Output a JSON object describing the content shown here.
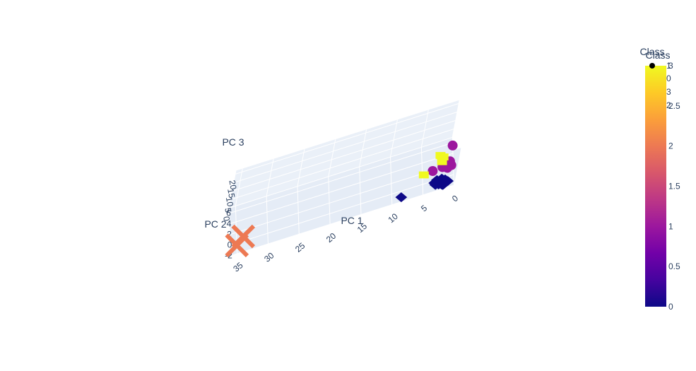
{
  "chart_data": {
    "type": "scatter",
    "projection": "3d",
    "axes": {
      "x": {
        "title": "PC 1",
        "ticks": [
          "0",
          "5",
          "10",
          "15",
          "20",
          "25",
          "30",
          "35"
        ]
      },
      "y": {
        "title": "PC 2",
        "ticks": [
          "-2",
          "0",
          "2",
          "4",
          "6"
        ]
      },
      "z": {
        "title": "PC 3",
        "ticks": [
          "0",
          "5",
          "10",
          "15",
          "20"
        ]
      }
    },
    "grid": true,
    "scene_background": "#e5ecf6",
    "series": [
      {
        "class": 0,
        "marker": "diamond",
        "color": "#0d0887",
        "points": [
          [
            1,
            -1,
            0.5
          ],
          [
            2,
            -1.5,
            1
          ],
          [
            3,
            -1,
            0.5
          ],
          [
            2,
            -0.5,
            1.5
          ],
          [
            1.5,
            -1,
            2
          ],
          [
            2.5,
            -1.2,
            0.8
          ],
          [
            3.2,
            -0.8,
            1.2
          ],
          [
            1.8,
            -1.4,
            0.3
          ],
          [
            2.8,
            -0.6,
            1.8
          ],
          [
            8.5,
            -1.2,
            0.2
          ]
        ]
      },
      {
        "class": 1,
        "marker": "circle",
        "color": "#9c179e",
        "points": [
          [
            0.5,
            1,
            3
          ],
          [
            1,
            1.5,
            4
          ],
          [
            1.5,
            1,
            3.5
          ],
          [
            2,
            0.8,
            4.2
          ],
          [
            0.8,
            1.2,
            5
          ],
          [
            1.2,
            0.5,
            3.8
          ],
          [
            0.6,
            2.5,
            10
          ],
          [
            3.5,
            1,
            3
          ]
        ]
      },
      {
        "class": 2,
        "marker": "x",
        "color": "#ed7953",
        "points": [
          [
            34,
            0.5,
            1.2
          ],
          [
            35,
            -0.5,
            0.2
          ]
        ]
      },
      {
        "class": 3,
        "marker": "square",
        "color": "#f0f921",
        "points": [
          [
            2,
            1.5,
            8
          ],
          [
            2.2,
            1,
            7
          ],
          [
            2.5,
            1.8,
            8.5
          ],
          [
            5,
            0.5,
            4
          ]
        ]
      }
    ],
    "colorbar": {
      "title": "Class",
      "range": [
        0,
        3
      ],
      "ticks": [
        "0",
        "0.5",
        "1",
        "1.5",
        "2",
        "2.5",
        "3"
      ],
      "colorscale": [
        "#0d0887",
        "#46039f",
        "#7201a8",
        "#9c179e",
        "#bd3786",
        "#d8576b",
        "#ed7953",
        "#fb9f3a",
        "#fdca26",
        "#f0f921"
      ]
    },
    "legend": {
      "title": "Class",
      "entries": [
        "1",
        "0",
        "3",
        "2"
      ]
    }
  }
}
